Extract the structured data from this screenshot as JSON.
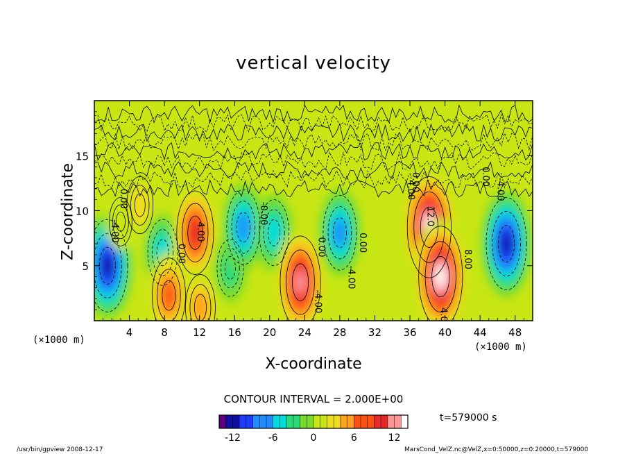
{
  "figure": {
    "title": "vertical velocity",
    "interval_label": "CONTOUR INTERVAL = 2.000E+00",
    "time_label": "t=579000 s",
    "footer_left": "/usr/bin/gpview   2008-12-17",
    "footer_right": "MarsCond_VelZ.nc@VelZ,x=0:50000,z=0:20000,t=579000"
  },
  "chart_data": {
    "type": "heatmap",
    "title": "vertical velocity",
    "xlabel": "X-coordinate",
    "ylabel": "Z-coordinate",
    "x_unit_label_left": "(×1000 m)",
    "x_unit_label_right": "(×1000 m)",
    "xlim": [
      0,
      50
    ],
    "ylim": [
      0,
      20
    ],
    "x_ticks": [
      4,
      8,
      12,
      16,
      20,
      24,
      28,
      32,
      36,
      40,
      44,
      48
    ],
    "y_ticks": [
      5,
      10,
      15
    ],
    "contour_interval": 2.0,
    "contour_labels": [
      {
        "text": "4.00",
        "x": 11.8,
        "z": 9.0
      },
      {
        "text": "0.00",
        "x": 9.6,
        "z": 7.0
      },
      {
        "text": "0.00",
        "x": 3.0,
        "z": 12.0
      },
      {
        "text": "-4.00",
        "x": 2.0,
        "z": 9.2
      },
      {
        "text": "0.00",
        "x": 25.6,
        "z": 7.6
      },
      {
        "text": "-4.00",
        "x": 25.2,
        "z": 2.8
      },
      {
        "text": "-4.00",
        "x": 29.0,
        "z": 5.0
      },
      {
        "text": "0.00",
        "x": 30.3,
        "z": 8.0
      },
      {
        "text": "0.00",
        "x": 36.3,
        "z": 13.5
      },
      {
        "text": "4.00",
        "x": 35.8,
        "z": 12.8
      },
      {
        "text": "12.0",
        "x": 38.0,
        "z": 10.4
      },
      {
        "text": "8.00",
        "x": 42.3,
        "z": 6.5
      },
      {
        "text": "4.00",
        "x": 39.5,
        "z": 1.2
      },
      {
        "text": "0.00",
        "x": 44.3,
        "z": 14.0
      },
      {
        "text": "-4.00",
        "x": 46.0,
        "z": 13.0
      },
      {
        "text": "-0.00",
        "x": 19.0,
        "z": 10.8
      }
    ],
    "features": [
      {
        "x": 1.5,
        "z": 5.0,
        "value": -12
      },
      {
        "x": 3.0,
        "z": 9.0,
        "value": 2
      },
      {
        "x": 5.2,
        "z": 10.5,
        "value": 4
      },
      {
        "x": 7.8,
        "z": 6.2,
        "value": -6
      },
      {
        "x": 8.5,
        "z": 2.3,
        "value": 8
      },
      {
        "x": 11.5,
        "z": 8.0,
        "value": 10
      },
      {
        "x": 12.1,
        "z": 1.2,
        "value": 6
      },
      {
        "x": 15.5,
        "z": 4.8,
        "value": -4
      },
      {
        "x": 17.0,
        "z": 8.5,
        "value": -8
      },
      {
        "x": 20.5,
        "z": 8.0,
        "value": -6
      },
      {
        "x": 23.5,
        "z": 3.5,
        "value": 12
      },
      {
        "x": 28.0,
        "z": 8.0,
        "value": -8
      },
      {
        "x": 38.2,
        "z": 8.5,
        "value": 14
      },
      {
        "x": 39.5,
        "z": 4.0,
        "value": 14
      },
      {
        "x": 47.0,
        "z": 7.0,
        "value": -12
      }
    ],
    "colorbar": {
      "min": -14,
      "max": 14,
      "ticks": [
        -12,
        -6,
        0,
        6,
        12
      ],
      "colors": [
        "#5a0080",
        "#1010a0",
        "#1e3cff",
        "#1e8cff",
        "#00dcdc",
        "#28dc78",
        "#78dc28",
        "#c8e614",
        "#f0dc1e",
        "#ffa01e",
        "#ff5014",
        "#e62828",
        "#ff9696",
        "#ffffff"
      ]
    },
    "grid": false
  }
}
